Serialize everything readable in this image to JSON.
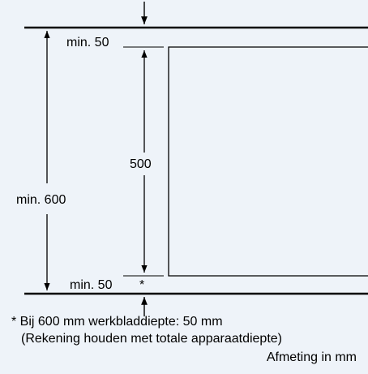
{
  "diagram": {
    "top_gap_label": "min. 50",
    "height_label": "500",
    "total_depth_label": "min. 600",
    "bottom_gap_label": "min. 50",
    "asterisk": "*"
  },
  "footnote": {
    "line1": "* Bij 600 mm werkbladdiepte: 50 mm",
    "line2": "(Rekening houden met totale apparaatdiepte)",
    "unit_note": "Afmeting in mm"
  }
}
